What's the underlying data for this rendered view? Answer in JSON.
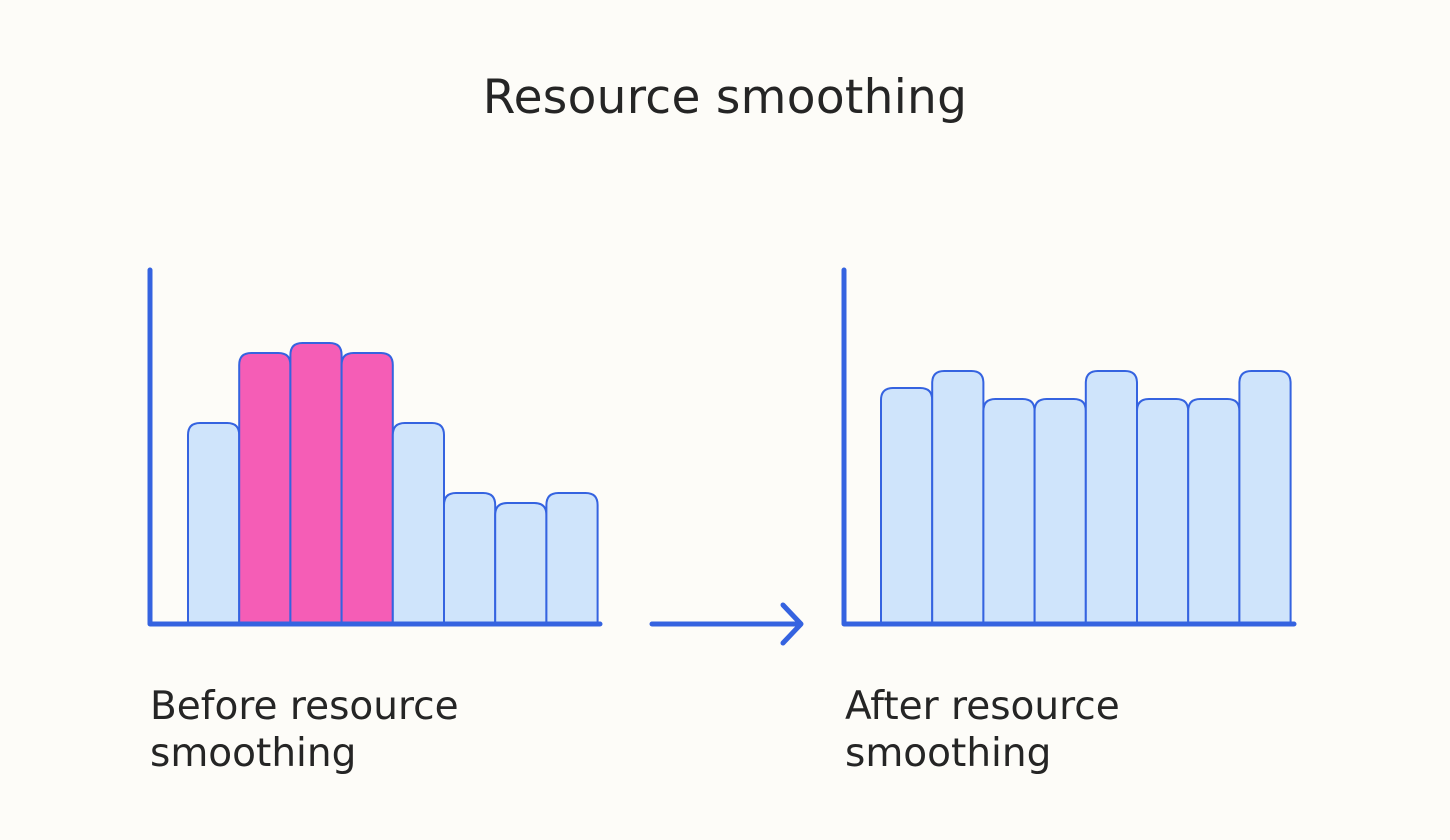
{
  "title": "Resource smoothing",
  "colors": {
    "background": "#fdfcf8",
    "axis": "#3563e0",
    "bar_fill": "#cfe4fb",
    "bar_stroke": "#3563e0",
    "highlight_fill": "#f55db6",
    "text": "#252525"
  },
  "chart_data": [
    {
      "type": "bar",
      "caption": "Before resource smoothing",
      "values": [
        20,
        27,
        28,
        27,
        20,
        13,
        12,
        13
      ],
      "highlighted": [
        false,
        true,
        true,
        true,
        false,
        false,
        false,
        false
      ],
      "ylim": [
        0,
        35
      ],
      "grid": false
    },
    {
      "type": "bar",
      "caption": "After resource smoothing",
      "values": [
        23.5,
        25.2,
        22.4,
        22.4,
        25.2,
        22.4,
        22.4,
        25.2
      ],
      "highlighted": [
        false,
        false,
        false,
        false,
        false,
        false,
        false,
        false
      ],
      "ylim": [
        0,
        35
      ],
      "grid": false
    }
  ],
  "arrow": "right-arrow"
}
